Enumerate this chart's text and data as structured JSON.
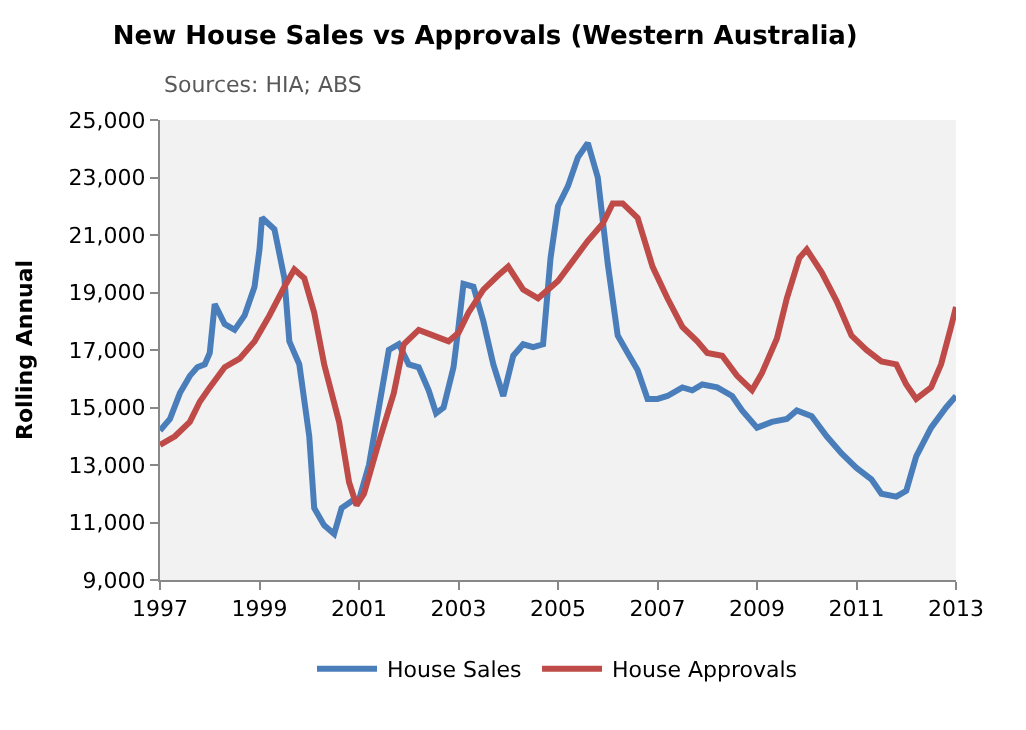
{
  "chart_data": {
    "type": "line",
    "title": "New House Sales vs Approvals (Western Australia)",
    "ylabel": "Rolling Annual",
    "annotations": [
      "Sources: HIA; ABS"
    ],
    "xlim": [
      1997,
      2013
    ],
    "xticks": [
      1997,
      1999,
      2001,
      2003,
      2005,
      2007,
      2009,
      2011,
      2013
    ],
    "ylim": [
      9000,
      25000
    ],
    "yticks": [
      {
        "value": 9000,
        "label": "9,000"
      },
      {
        "value": 11000,
        "label": "11,000"
      },
      {
        "value": 13000,
        "label": "13,000"
      },
      {
        "value": 15000,
        "label": "15,000"
      },
      {
        "value": 17000,
        "label": "17,000"
      },
      {
        "value": 19000,
        "label": "19,000"
      },
      {
        "value": 21000,
        "label": "21,000"
      },
      {
        "value": 23000,
        "label": "23,000"
      },
      {
        "value": 25000,
        "label": "25,000"
      }
    ],
    "grid": false,
    "legend": "bottom",
    "marker": "none",
    "line_style": "solid",
    "series": [
      {
        "name": "House Sales",
        "color": "#4a7ebb",
        "x": [
          1997.0,
          1997.2,
          1997.4,
          1997.6,
          1997.75,
          1997.9,
          1998.0,
          1998.1,
          1998.3,
          1998.5,
          1998.7,
          1998.9,
          1999.0,
          1999.05,
          1999.3,
          1999.5,
          1999.6,
          1999.8,
          2000.0,
          2000.1,
          2000.3,
          2000.5,
          2000.65,
          2000.9,
          2001.0,
          2001.2,
          2001.4,
          2001.6,
          2001.8,
          2002.0,
          2002.2,
          2002.4,
          2002.55,
          2002.7,
          2002.9,
          2003.0,
          2003.1,
          2003.3,
          2003.5,
          2003.7,
          2003.9,
          2004.1,
          2004.3,
          2004.5,
          2004.7,
          2004.85,
          2005.0,
          2005.2,
          2005.4,
          2005.6,
          2005.8,
          2006.0,
          2006.2,
          2006.4,
          2006.6,
          2006.8,
          2007.0,
          2007.2,
          2007.5,
          2007.7,
          2007.9,
          2008.2,
          2008.5,
          2008.7,
          2009.0,
          2009.3,
          2009.6,
          2009.8,
          2010.1,
          2010.4,
          2010.7,
          2011.0,
          2011.3,
          2011.5,
          2011.8,
          2012.0,
          2012.2,
          2012.5,
          2012.8,
          2013.0
        ],
        "values": [
          14200,
          14600,
          15500,
          16100,
          16400,
          16500,
          16900,
          18600,
          17900,
          17700,
          18200,
          19200,
          20500,
          21600,
          21200,
          19500,
          17300,
          16500,
          14000,
          11500,
          10900,
          10600,
          11500,
          11800,
          11800,
          13000,
          15000,
          17000,
          17200,
          16500,
          16400,
          15600,
          14800,
          15000,
          16400,
          17800,
          19300,
          19200,
          18000,
          16500,
          15400,
          16800,
          17200,
          17100,
          17200,
          20200,
          22000,
          22700,
          23700,
          24200,
          23000,
          20000,
          17500,
          16900,
          16300,
          15300,
          15300,
          15400,
          15700,
          15600,
          15800,
          15700,
          15400,
          14900,
          14300,
          14500,
          14600,
          14900,
          14700,
          14000,
          13400,
          12900,
          12500,
          12000,
          11900,
          12100,
          13300,
          14300,
          15000,
          15400
        ]
      },
      {
        "name": "House Approvals",
        "color": "#be4b48",
        "x": [
          1997.0,
          1997.3,
          1997.6,
          1997.8,
          1998.0,
          1998.3,
          1998.6,
          1998.9,
          1999.2,
          1999.5,
          1999.7,
          1999.9,
          2000.1,
          2000.3,
          2000.6,
          2000.8,
          2000.95,
          2001.1,
          2001.4,
          2001.7,
          2001.9,
          2002.2,
          2002.5,
          2002.8,
          2003.0,
          2003.2,
          2003.5,
          2003.8,
          2004.0,
          2004.3,
          2004.6,
          2004.8,
          2005.0,
          2005.3,
          2005.6,
          2005.9,
          2006.1,
          2006.3,
          2006.6,
          2006.9,
          2007.2,
          2007.5,
          2007.8,
          2008.0,
          2008.3,
          2008.6,
          2008.9,
          2009.1,
          2009.4,
          2009.6,
          2009.85,
          2010.0,
          2010.3,
          2010.6,
          2010.9,
          2011.2,
          2011.5,
          2011.8,
          2012.0,
          2012.2,
          2012.5,
          2012.7,
          2012.9,
          2013.0
        ],
        "values": [
          13700,
          14000,
          14500,
          15200,
          15700,
          16400,
          16700,
          17300,
          18200,
          19200,
          19800,
          19500,
          18300,
          16500,
          14500,
          12400,
          11600,
          12000,
          13800,
          15500,
          17200,
          17700,
          17500,
          17300,
          17600,
          18300,
          19100,
          19600,
          19900,
          19100,
          18800,
          19100,
          19400,
          20100,
          20800,
          21400,
          22100,
          22100,
          21600,
          19900,
          18800,
          17800,
          17300,
          16900,
          16800,
          16100,
          15600,
          16200,
          17400,
          18800,
          20200,
          20500,
          19700,
          18700,
          17500,
          17000,
          16600,
          16500,
          15800,
          15300,
          15700,
          16500,
          17800,
          18500
        ]
      }
    ]
  }
}
